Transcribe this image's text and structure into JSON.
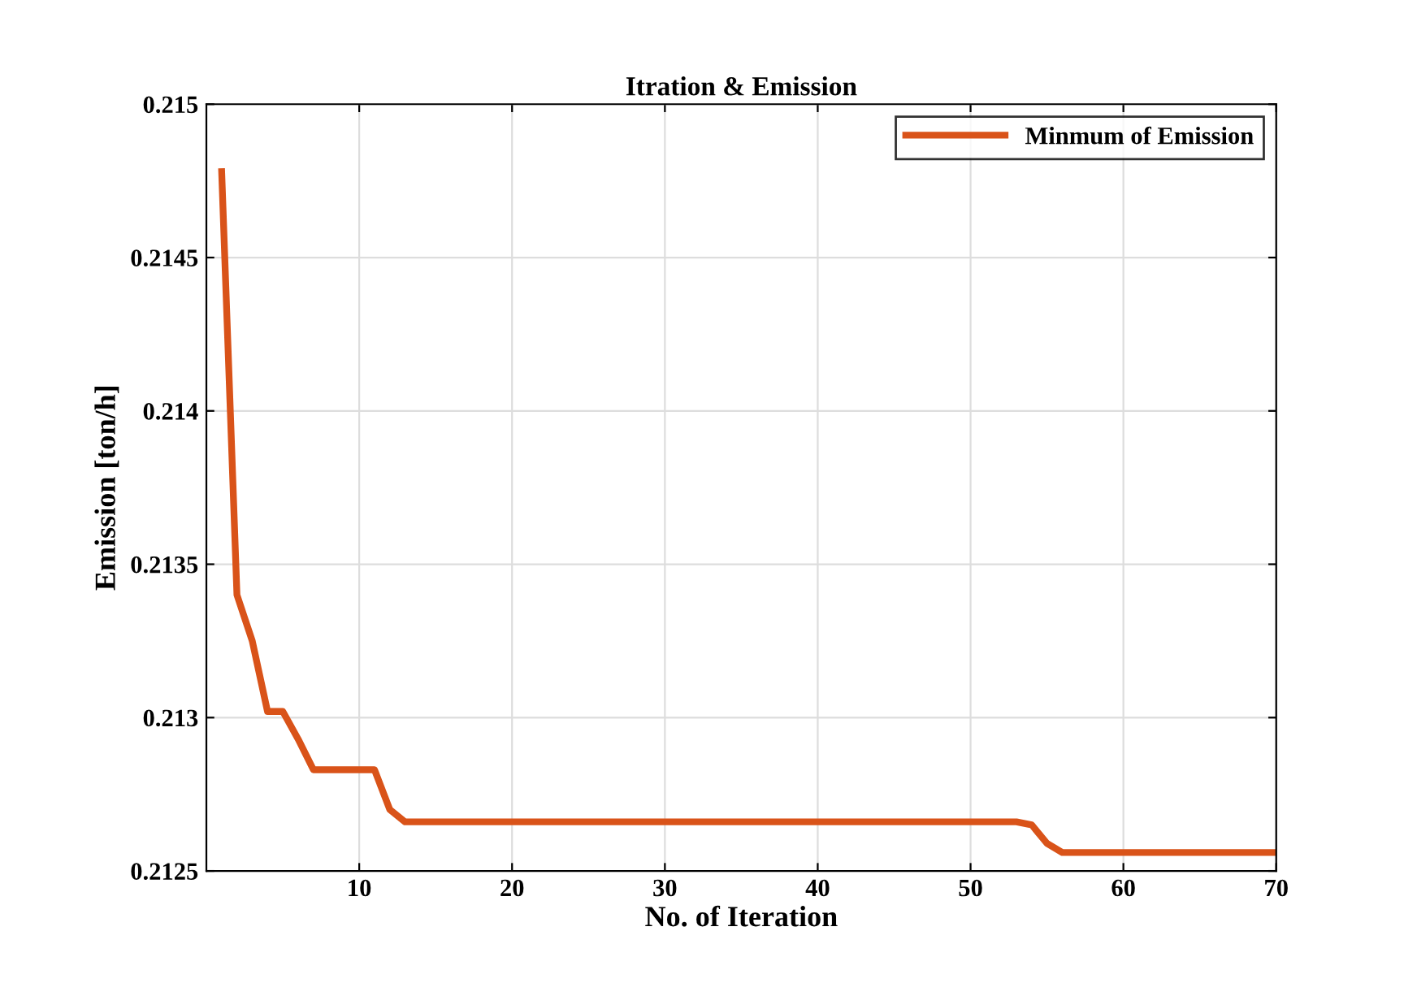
{
  "chart_data": {
    "type": "line",
    "title": "Itration & Emission",
    "xlabel": "No. of Iteration",
    "ylabel": "Emission [ton/h]",
    "x": [
      1,
      2,
      3,
      4,
      5,
      6,
      7,
      11,
      12,
      13,
      53,
      54,
      55,
      56,
      70
    ],
    "series": [
      {
        "name": "Minmum of Emission",
        "color": "#d95319",
        "values": [
          0.21478,
          0.2134,
          0.21325,
          0.21302,
          0.21302,
          0.21293,
          0.21283,
          0.21283,
          0.2127,
          0.21266,
          0.21266,
          0.21265,
          0.21259,
          0.21256,
          0.21256
        ]
      }
    ],
    "xlim": [
      0,
      70
    ],
    "xticks": [
      10,
      20,
      30,
      40,
      50,
      60,
      70
    ],
    "ylim": [
      0.2125,
      0.215
    ],
    "yticks": [
      0.2125,
      0.213,
      0.2135,
      0.214,
      0.2145,
      0.215
    ],
    "grid": true,
    "legend": "top right",
    "marker": "none",
    "line_style": "solid"
  }
}
